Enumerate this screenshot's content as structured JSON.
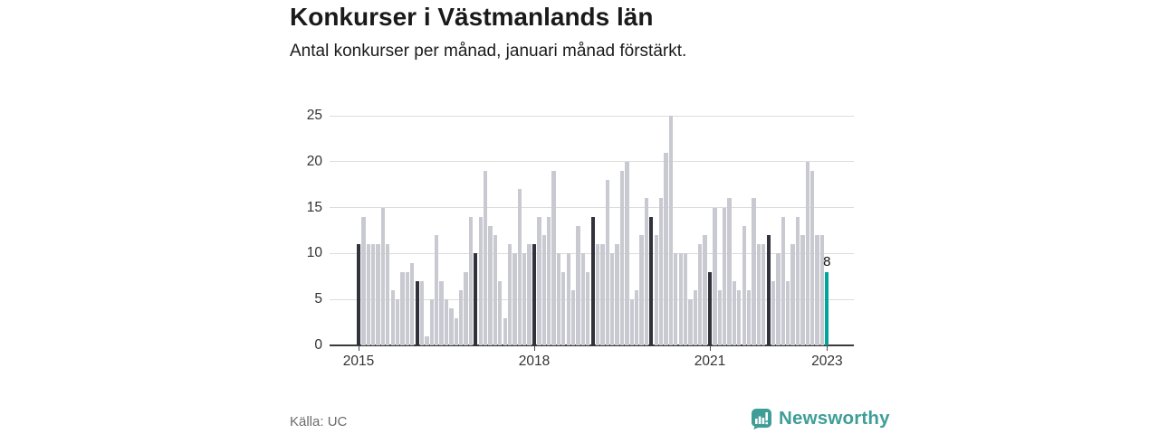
{
  "header": {
    "title": "Konkurser i Västmanlands län",
    "subtitle": "Antal konkurser per månad, januari månad förstärkt."
  },
  "footer": {
    "source": "Källa: UC",
    "brand": "Newsworthy"
  },
  "colors": {
    "bar_default": "#c9c9d2",
    "bar_january": "#32323c",
    "bar_highlight": "#00a49a",
    "grid": "#dcdcdc",
    "axis": "#3a3a3a",
    "brand_teal": "#3e9e97",
    "axis_text": "#333333",
    "muted_text": "#6b6b6b"
  },
  "chart_data": {
    "type": "bar",
    "title": "Konkurser i Västmanlands län",
    "subtitle": "Antal konkurser per månad, januari månad förstärkt.",
    "x_start": "2015-01",
    "x_end": "2023-01",
    "frequency": "monthly",
    "values": [
      11,
      14,
      11,
      11,
      11,
      15,
      11,
      6,
      5,
      8,
      8,
      9,
      7,
      7,
      1,
      5,
      12,
      7,
      5,
      4,
      3,
      6,
      8,
      14,
      10,
      14,
      19,
      13,
      12,
      7,
      3,
      11,
      10,
      17,
      10,
      11,
      11,
      14,
      12,
      14,
      19,
      10,
      8,
      10,
      6,
      13,
      10,
      8,
      14,
      11,
      11,
      18,
      10,
      11,
      19,
      20,
      5,
      6,
      12,
      16,
      14,
      12,
      16,
      21,
      25,
      10,
      10,
      10,
      5,
      6,
      11,
      12,
      8,
      15,
      6,
      15,
      16,
      7,
      6,
      13,
      6,
      16,
      11,
      11,
      12,
      7,
      10,
      14,
      7,
      11,
      14,
      12,
      20,
      19,
      12,
      12,
      8
    ],
    "emphasis": "january-bars-dark",
    "highlight_index": 96,
    "highlight_value_label": "8",
    "y_ticks": [
      0,
      5,
      10,
      15,
      20,
      25
    ],
    "ylim": [
      0,
      25
    ],
    "x_tick_labels": [
      {
        "label": "2015",
        "month_index": 0
      },
      {
        "label": "2018",
        "month_index": 36
      },
      {
        "label": "2021",
        "month_index": 72
      },
      {
        "label": "2023",
        "month_index": 96
      }
    ],
    "grid": true,
    "legend": false
  }
}
